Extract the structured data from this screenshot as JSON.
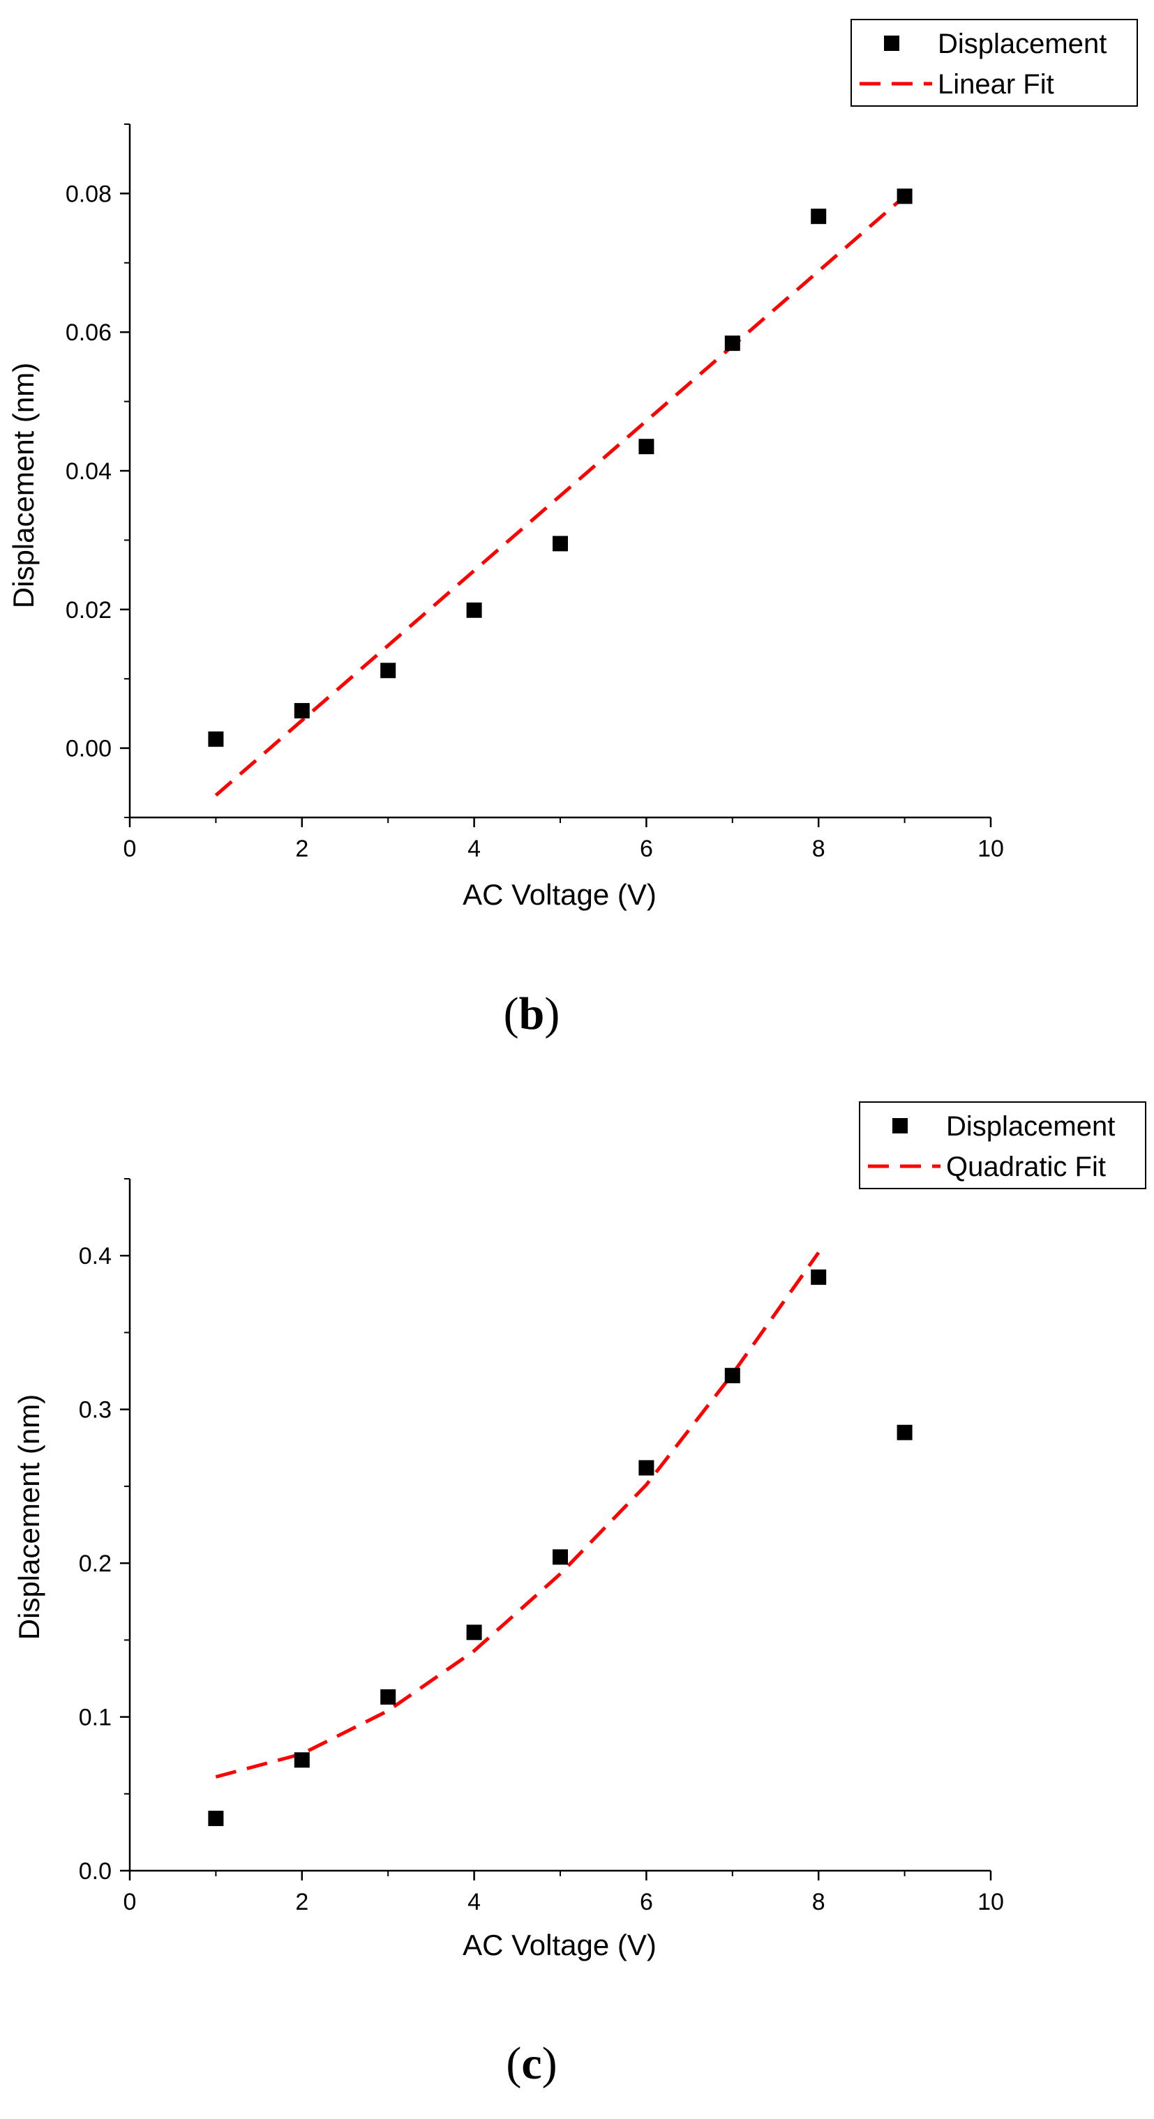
{
  "chart_data": [
    {
      "type": "scatter",
      "panel_label": "b",
      "xlabel": "AC Voltage (V)",
      "ylabel": "Displacement (nm)",
      "xlim": [
        0,
        10
      ],
      "ylim": [
        -0.01,
        0.09
      ],
      "xticks": [
        0,
        2,
        4,
        6,
        8,
        10
      ],
      "yticks": [
        0.0,
        0.02,
        0.04,
        0.06,
        0.08
      ],
      "ytick_labels": [
        "0.00",
        "0.02",
        "0.04",
        "0.06",
        "0.08"
      ],
      "legend_position": "top-right",
      "series": [
        {
          "name": "Displacement",
          "kind": "scatter",
          "color": "#000000",
          "x": [
            1,
            2,
            3,
            4,
            5,
            6,
            7,
            8,
            9
          ],
          "y": [
            0.0013,
            0.0054,
            0.0112,
            0.0199,
            0.0295,
            0.0435,
            0.0584,
            0.0767,
            0.0796
          ]
        },
        {
          "name": "Linear Fit",
          "kind": "line",
          "style": "dashed",
          "color": "#ff0000",
          "x": [
            1,
            9
          ],
          "y": [
            -0.0068,
            0.0796
          ]
        }
      ]
    },
    {
      "type": "scatter",
      "panel_label": "c",
      "xlabel": "AC Voltage (V)",
      "ylabel": "Displacement (nm)",
      "xlim": [
        0,
        10
      ],
      "ylim": [
        0,
        0.45
      ],
      "xticks": [
        0,
        2,
        4,
        6,
        8,
        10
      ],
      "yticks": [
        0.0,
        0.1,
        0.2,
        0.3,
        0.4
      ],
      "ytick_labels": [
        "0.0",
        "0.1",
        "0.2",
        "0.3",
        "0.4"
      ],
      "legend_position": "top-right",
      "series": [
        {
          "name": "Displacement",
          "kind": "scatter",
          "color": "#000000",
          "x": [
            1,
            2,
            3,
            4,
            5,
            6,
            7,
            8,
            9
          ],
          "y": [
            0.034,
            0.072,
            0.113,
            0.155,
            0.204,
            0.262,
            0.322,
            0.386,
            0.285
          ]
        },
        {
          "name": "Quadratic Fit",
          "kind": "line",
          "style": "dashed",
          "color": "#ff0000",
          "x": [
            1,
            2,
            3,
            4,
            5,
            6,
            7,
            8
          ],
          "y": [
            0.061,
            0.076,
            0.104,
            0.143,
            0.193,
            0.251,
            0.323,
            0.402
          ]
        }
      ]
    }
  ]
}
